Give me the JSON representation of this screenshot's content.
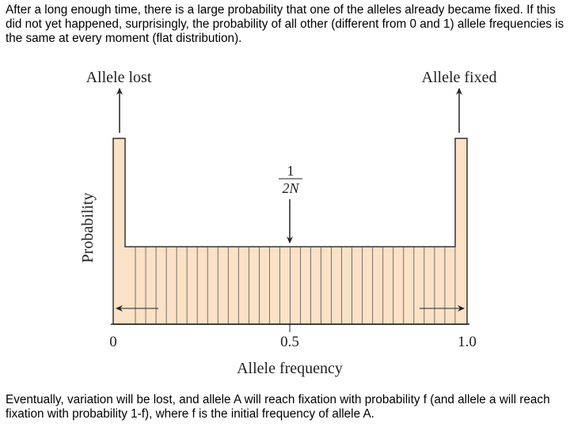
{
  "intro": "After a long enough time, there is a large probability that one of the alleles already became fixed. If this did not yet happened, surprisingly, the probability of all other (different from 0 and 1) allele frequencies is the same at every moment (flat distribution).",
  "diagram": {
    "left_label": "Allele lost",
    "right_label": "Allele fixed",
    "marker_numerator": "1",
    "marker_denominator": "2N",
    "y_axis_label": "Probability",
    "x_tick_labels": [
      "0",
      "0.5",
      "1.0"
    ],
    "x_axis_label": "Allele frequency"
  },
  "outro": "Eventually, variation will be lost, and allele A will reach fixation with probability f (and allele a will reach fixation with probability 1-f), where f is the initial frequency of allele A."
}
